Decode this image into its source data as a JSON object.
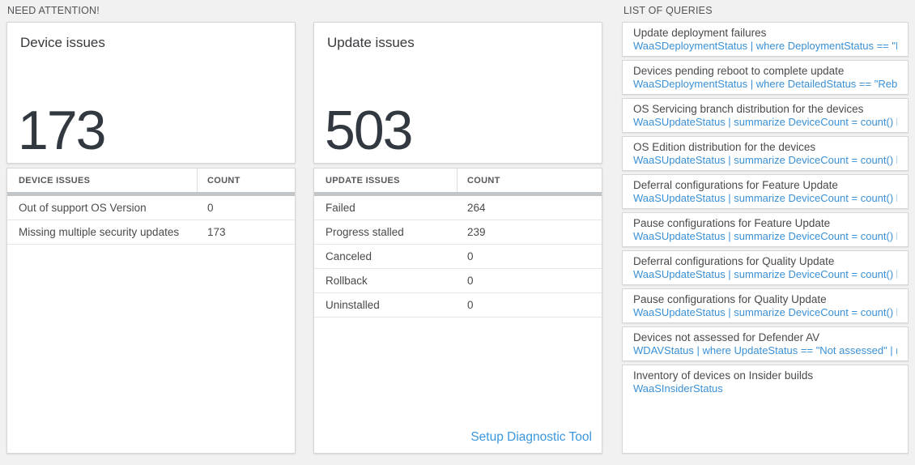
{
  "sections": {
    "need_attention": "NEED ATTENTION!",
    "list_of_queries": "LIST OF QUERIES"
  },
  "device_issues": {
    "tile_title": "Device issues",
    "tile_count": "173",
    "table_headers": {
      "name": "DEVICE ISSUES",
      "count": "COUNT"
    },
    "rows": [
      {
        "label": "Out of support OS Version",
        "count": "0"
      },
      {
        "label": "Missing multiple security updates",
        "count": "173"
      }
    ]
  },
  "update_issues": {
    "tile_title": "Update issues",
    "tile_count": "503",
    "table_headers": {
      "name": "UPDATE ISSUES",
      "count": "COUNT"
    },
    "rows": [
      {
        "label": "Failed",
        "count": "264"
      },
      {
        "label": "Progress stalled",
        "count": "239"
      },
      {
        "label": "Canceled",
        "count": "0"
      },
      {
        "label": "Rollback",
        "count": "0"
      },
      {
        "label": "Uninstalled",
        "count": "0"
      }
    ],
    "footer_link": "Setup Diagnostic Tool"
  },
  "queries": [
    {
      "title": "Update deployment failures",
      "query": "WaaSDeploymentStatus | where DeploymentStatus == \"Failed\" |..."
    },
    {
      "title": "Devices pending reboot to complete update",
      "query": "WaaSDeploymentStatus | where DetailedStatus == \"Reboot pend..."
    },
    {
      "title": "OS Servicing branch distribution for the devices",
      "query": "WaaSUpdateStatus | summarize DeviceCount = count() by OSSer..."
    },
    {
      "title": "OS Edition distribution for the devices",
      "query": "WaaSUpdateStatus | summarize DeviceCount = count() by OSEdit..."
    },
    {
      "title": "Deferral configurations for Feature Update",
      "query": "WaaSUpdateStatus | summarize DeviceCount = count() by Featur..."
    },
    {
      "title": "Pause configurations for Feature Update",
      "query": "WaaSUpdateStatus | summarize DeviceCount = count() by Featur..."
    },
    {
      "title": "Deferral configurations for Quality Update",
      "query": "WaaSUpdateStatus | summarize DeviceCount = count() by Qualit..."
    },
    {
      "title": "Pause configurations for Quality Update",
      "query": "WaaSUpdateStatus | summarize DeviceCount = count() by Qualit..."
    },
    {
      "title": "Devices not assessed for Defender AV",
      "query": "WDAVStatus | where UpdateStatus == \"Not assessed\" | render ta..."
    },
    {
      "title": "Inventory of devices on Insider builds",
      "query": "WaaSInsiderStatus"
    }
  ],
  "colors": {
    "accent_blue": "#3a90d6",
    "number_dark": "#31383f",
    "header_bar_gray": "#c3c6c9",
    "page_background": "#f1f1f1"
  }
}
